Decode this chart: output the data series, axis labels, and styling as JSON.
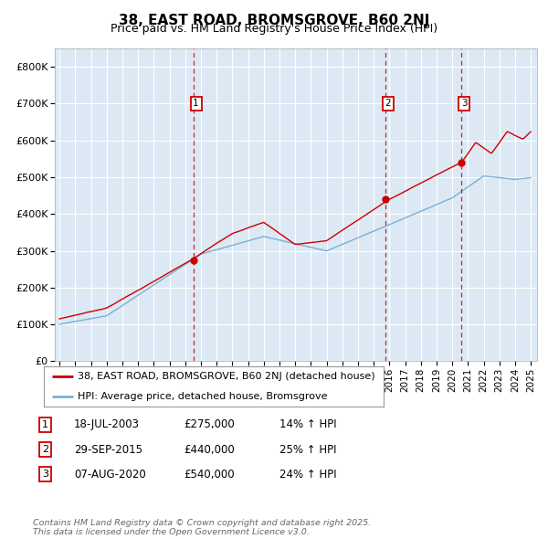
{
  "title": "38, EAST ROAD, BROMSGROVE, B60 2NJ",
  "subtitle": "Price paid vs. HM Land Registry's House Price Index (HPI)",
  "legend_line1": "38, EAST ROAD, BROMSGROVE, B60 2NJ (detached house)",
  "legend_line2": "HPI: Average price, detached house, Bromsgrove",
  "footnote": "Contains HM Land Registry data © Crown copyright and database right 2025.\nThis data is licensed under the Open Government Licence v3.0.",
  "transactions": [
    {
      "num": 1,
      "date": "18-JUL-2003",
      "price": 275000,
      "pct": "14%",
      "dir": "↑"
    },
    {
      "num": 2,
      "date": "29-SEP-2015",
      "price": 440000,
      "pct": "25%",
      "dir": "↑"
    },
    {
      "num": 3,
      "date": "07-AUG-2020",
      "price": 540000,
      "pct": "24%",
      "dir": "↑"
    }
  ],
  "transaction_dates_decimal": [
    2003.54,
    2015.75,
    2020.6
  ],
  "ylim": [
    0,
    850000
  ],
  "yticks": [
    0,
    100000,
    200000,
    300000,
    400000,
    500000,
    600000,
    700000,
    800000
  ],
  "ytick_labels": [
    "£0",
    "£100K",
    "£200K",
    "£300K",
    "£400K",
    "£500K",
    "£600K",
    "£700K",
    "£800K"
  ],
  "bg_color": "#dce9f5",
  "red_line_color": "#cc0000",
  "blue_line_color": "#7ab0d4",
  "vline_color": "#cc0000",
  "box_color": "#cc0000",
  "grid_color": "#ffffff",
  "xmin": 1995,
  "xmax": 2025
}
